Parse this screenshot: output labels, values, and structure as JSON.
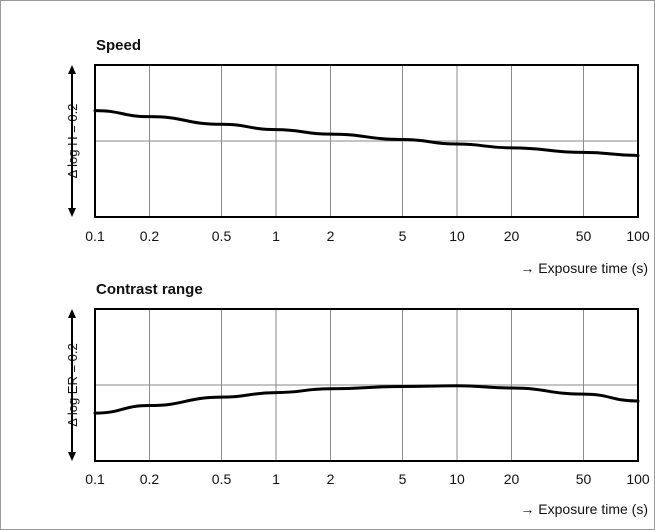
{
  "chart_data": [
    {
      "type": "line",
      "title": "Speed",
      "xlabel": "→ Exposure time (s)",
      "ylabel": "Δ log H = 0.2",
      "x_scale": "log",
      "xlim": [
        0.1,
        100
      ],
      "ylim": [
        -0.1,
        0.1
      ],
      "x_ticks": [
        0.1,
        0.2,
        0.5,
        1,
        2,
        5,
        10,
        20,
        50,
        100
      ],
      "x_tick_labels": [
        "0.1",
        "0.2",
        "0.5",
        "1",
        "2",
        "5",
        "10",
        "20",
        "50",
        "100"
      ],
      "reference_line_y": 0,
      "grid": true,
      "series": [
        {
          "x": [
            0.1,
            0.2,
            0.5,
            1,
            2,
            5,
            10,
            20,
            50,
            100
          ],
          "values": [
            0.04,
            0.032,
            0.022,
            0.015,
            0.009,
            0.002,
            -0.004,
            -0.009,
            -0.015,
            -0.019
          ]
        }
      ]
    },
    {
      "type": "line",
      "title": "Contrast range",
      "xlabel": "→ Exposure time (s)",
      "ylabel": "Δ log ER = 0.2",
      "x_scale": "log",
      "xlim": [
        0.1,
        100
      ],
      "ylim": [
        -0.1,
        0.1
      ],
      "x_ticks": [
        0.1,
        0.2,
        0.5,
        1,
        2,
        5,
        10,
        20,
        50,
        100
      ],
      "x_tick_labels": [
        "0.1",
        "0.2",
        "0.5",
        "1",
        "2",
        "5",
        "10",
        "20",
        "50",
        "100"
      ],
      "reference_line_y": 0,
      "grid": true,
      "series": [
        {
          "x": [
            0.1,
            0.2,
            0.5,
            1,
            2,
            5,
            10,
            20,
            50,
            100
          ],
          "values": [
            -0.037,
            -0.027,
            -0.016,
            -0.01,
            -0.005,
            -0.002,
            -0.001,
            -0.004,
            -0.012,
            -0.021
          ]
        }
      ]
    }
  ]
}
